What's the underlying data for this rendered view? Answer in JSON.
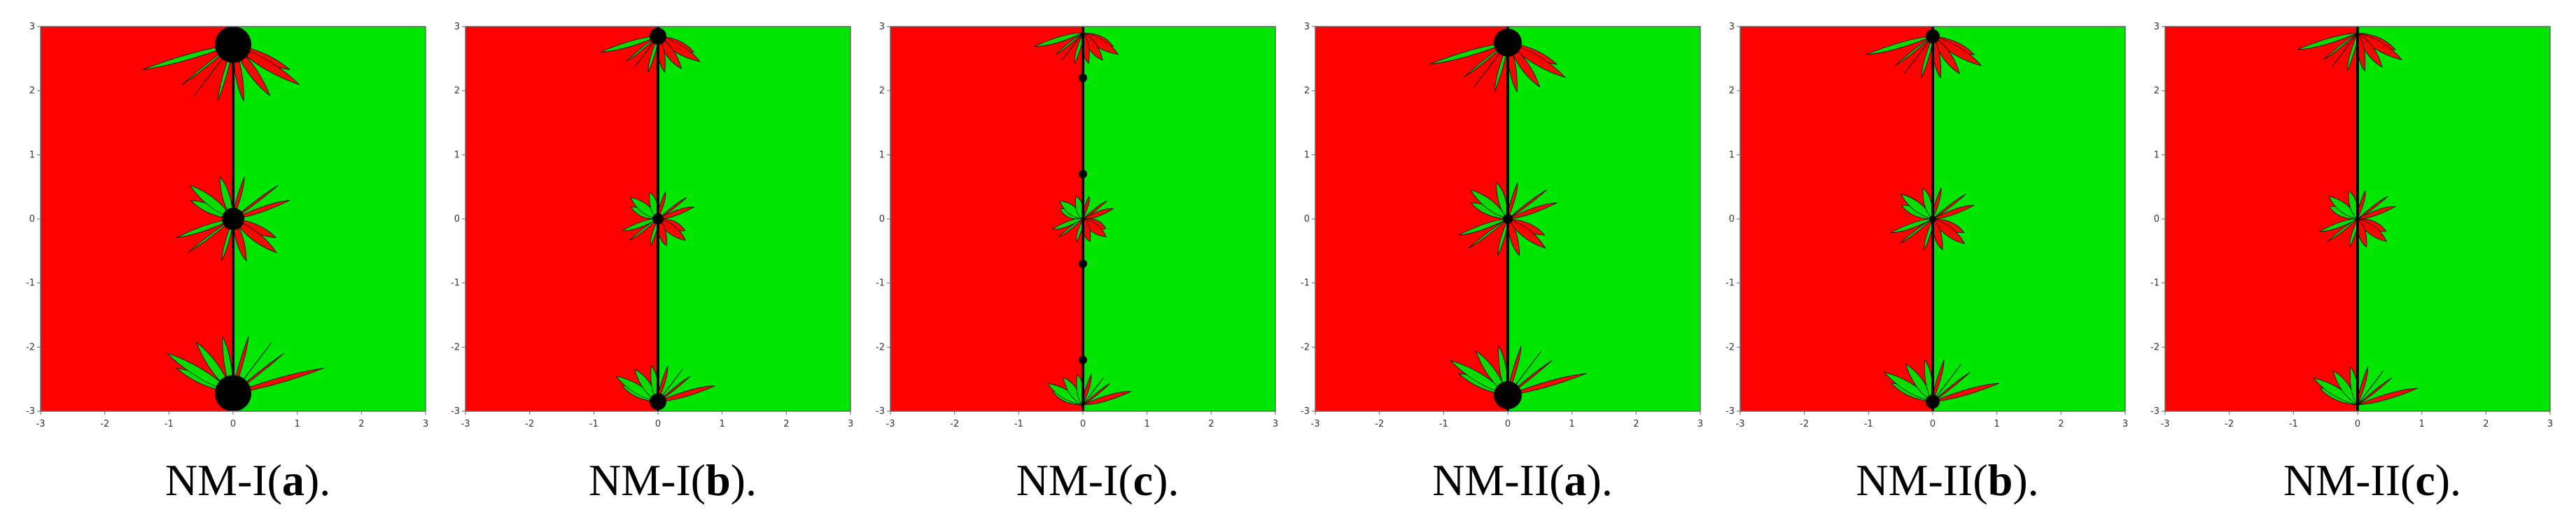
{
  "colors": {
    "basin_left": "#ff0000",
    "basin_right": "#00e600",
    "divergent": "#000000",
    "frame": "#666666"
  },
  "axes": {
    "x_ticks": [
      "-3",
      "-2",
      "-1",
      "0",
      "1",
      "2",
      "3"
    ],
    "y_ticks": [
      "3",
      "2",
      "1",
      "0",
      "-1",
      "-2",
      "-3"
    ],
    "xlim": [
      -3,
      3
    ],
    "ylim": [
      -3,
      3
    ]
  },
  "panels": [
    {
      "prefix": "NM-I(",
      "letter": "a",
      "suffix": ")."
    },
    {
      "prefix": "NM-I(",
      "letter": "b",
      "suffix": ")."
    },
    {
      "prefix": "NM-I(",
      "letter": "c",
      "suffix": ")."
    },
    {
      "prefix": "NM-II(",
      "letter": "a",
      "suffix": ")."
    },
    {
      "prefix": "NM-II(",
      "letter": "b",
      "suffix": ")."
    },
    {
      "prefix": "NM-II(",
      "letter": "c",
      "suffix": ")."
    }
  ]
}
